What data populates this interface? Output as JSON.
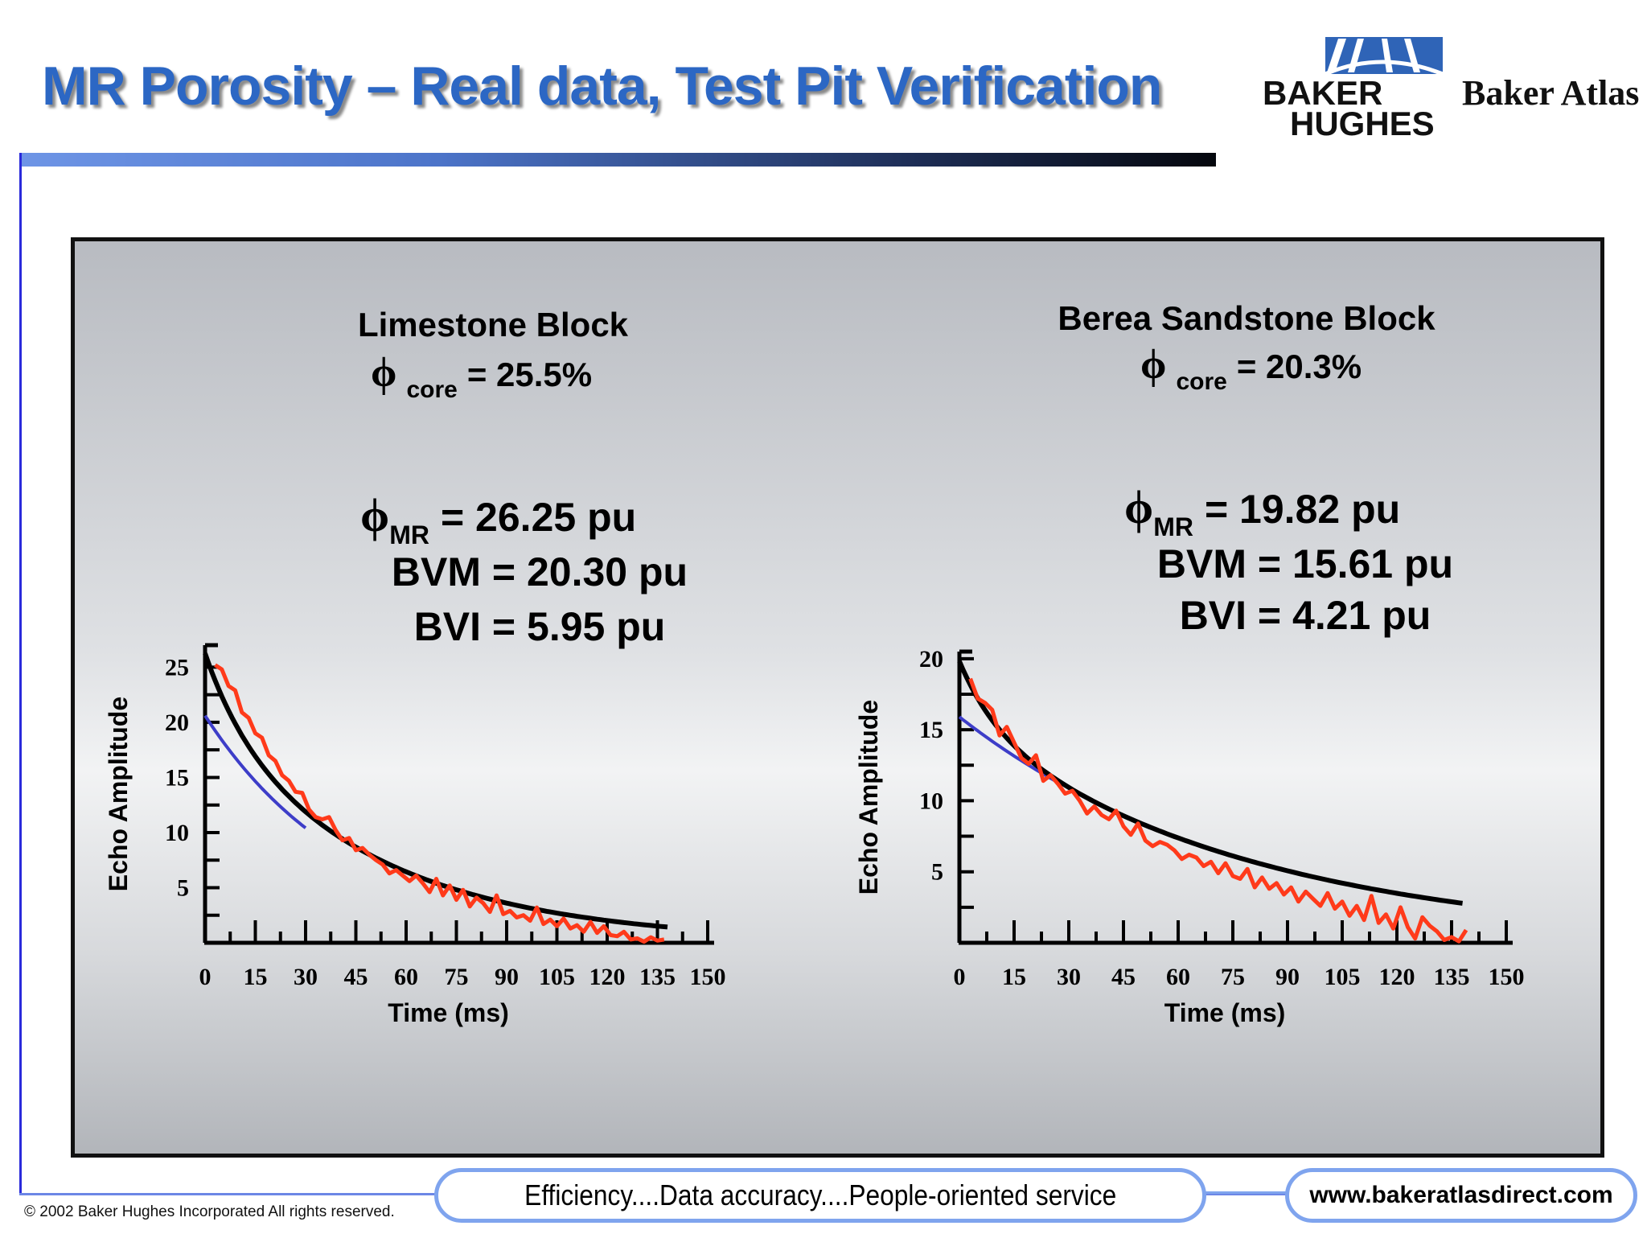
{
  "slide": {
    "title": "MR Porosity – Real data, Test Pit Verification",
    "logo_bh_line1": "BAKER",
    "logo_bh_line2": "HUGHES",
    "logo_ba": "Baker Atlas",
    "copyright": "© 2002 Baker Hughes Incorporated All rights reserved.",
    "slogan": "Efficiency....Data accuracy....People-oriented service",
    "url": "www.bakeratlasdirect.com"
  },
  "colors": {
    "title_blue": "#2c67c4",
    "measured_echo": "#ff3a1a",
    "total_fit": "#000000",
    "bound_fit": "#3d3dc8",
    "frame_border": "#7fa4ee"
  },
  "chart_data": [
    {
      "type": "line",
      "title": "Limestone Block",
      "phi_symbol": "ϕ",
      "core_sub": "core",
      "core_value": "= 25.5%",
      "mr_sub": "MR",
      "mr_value": "= 26.25 pu",
      "bvm_label": "BVM = 20.30 pu",
      "bvi_label": "BVI = 5.95 pu",
      "xlabel": "Time (ms)",
      "ylabel": "Echo Amplitude",
      "xlim": [
        0,
        150
      ],
      "ylim": [
        0,
        27
      ],
      "xticks": [
        0,
        15,
        30,
        45,
        60,
        75,
        90,
        105,
        120,
        135,
        150
      ],
      "xtick_labels": [
        "0",
        "15",
        "30",
        "45",
        "60",
        "75",
        "90",
        "105",
        "120",
        "135",
        "150"
      ],
      "yticks": [
        5,
        10,
        15,
        20,
        25
      ],
      "ytick_labels": [
        "5",
        "10",
        "15",
        "20",
        "25"
      ],
      "fit_total": {
        "a0": 26.25,
        "bvi": 5.95,
        "t2_short": 12,
        "bvm": 20.3,
        "t2_long": 52,
        "x_end": 138
      },
      "fit_bound": {
        "a0": 20.6,
        "t2": 44,
        "x_start": 0,
        "x_end": 30
      },
      "measured": {
        "x": [
          3,
          5,
          7,
          9,
          11,
          13,
          15,
          17,
          19,
          21,
          23,
          25,
          27,
          29,
          31,
          33,
          35,
          37,
          39,
          41,
          43,
          45,
          47,
          49,
          51,
          53,
          55,
          57,
          59,
          61,
          63,
          65,
          67,
          69,
          71,
          73,
          75,
          77,
          79,
          81,
          83,
          85,
          87,
          89,
          91,
          93,
          95,
          97,
          99,
          101,
          103,
          105,
          107,
          109,
          111,
          113,
          115,
          117,
          119,
          121,
          123,
          125,
          127,
          129,
          131,
          133,
          135,
          137
        ],
        "y": [
          25.2,
          24.8,
          23.3,
          22.9,
          20.9,
          20.4,
          19.0,
          18.6,
          17.0,
          16.5,
          15.2,
          14.7,
          13.7,
          13.6,
          12.1,
          11.4,
          11.2,
          11.4,
          10.2,
          9.3,
          9.5,
          8.4,
          8.6,
          8.0,
          7.5,
          7.1,
          6.3,
          6.6,
          6.1,
          5.6,
          6.1,
          5.4,
          4.6,
          5.8,
          4.3,
          5.2,
          3.9,
          4.8,
          3.3,
          4.1,
          3.6,
          2.8,
          4.3,
          2.6,
          2.9,
          2.3,
          2.5,
          2.0,
          3.2,
          1.7,
          2.1,
          1.5,
          2.2,
          1.3,
          1.6,
          1.0,
          1.9,
          0.9,
          1.5,
          0.7,
          0.6,
          1.0,
          0.3,
          0.4,
          0.1,
          0.5,
          0.2,
          0.3
        ]
      }
    },
    {
      "type": "line",
      "title": "Berea Sandstone Block",
      "phi_symbol": "ϕ",
      "core_sub": "core",
      "core_value": "= 20.3%",
      "mr_sub": "MR",
      "mr_value": "= 19.82 pu",
      "bvm_label": "BVM = 15.61 pu",
      "bvi_label": "BVI = 4.21 pu",
      "xlabel": "Time (ms)",
      "ylabel": "Echo Amplitude",
      "xlim": [
        0,
        150
      ],
      "ylim": [
        0,
        20.5
      ],
      "xticks": [
        0,
        15,
        30,
        45,
        60,
        75,
        90,
        105,
        120,
        135,
        150
      ],
      "xtick_labels": [
        "0",
        "15",
        "30",
        "45",
        "60",
        "75",
        "90",
        "105",
        "120",
        "135",
        "150"
      ],
      "yticks": [
        5,
        10,
        15,
        20
      ],
      "ytick_labels": [
        "5",
        "10",
        "15",
        "20"
      ],
      "fit_total": {
        "a0": 19.82,
        "bvi": 4.21,
        "t2_short": 10,
        "bvm": 15.61,
        "t2_long": 80,
        "x_end": 138
      },
      "fit_bound": {
        "a0": 15.9,
        "t2": 79,
        "x_start": 0,
        "x_end": 28
      },
      "measured": {
        "x": [
          3,
          5,
          7,
          9,
          11,
          13,
          15,
          17,
          19,
          21,
          23,
          25,
          27,
          29,
          31,
          33,
          35,
          37,
          39,
          41,
          43,
          45,
          47,
          49,
          51,
          53,
          55,
          57,
          59,
          61,
          63,
          65,
          67,
          69,
          71,
          73,
          75,
          77,
          79,
          81,
          83,
          85,
          87,
          89,
          91,
          93,
          95,
          97,
          99,
          101,
          103,
          105,
          107,
          109,
          111,
          113,
          115,
          117,
          119,
          121,
          123,
          125,
          127,
          129,
          131,
          133,
          135,
          137,
          139
        ],
        "y": [
          18.6,
          17.2,
          16.9,
          16.4,
          14.6,
          15.2,
          14.1,
          13.0,
          12.6,
          13.2,
          11.4,
          11.8,
          11.2,
          10.5,
          10.7,
          10.0,
          9.1,
          9.6,
          9.0,
          8.7,
          9.3,
          8.2,
          7.6,
          8.4,
          7.2,
          6.8,
          7.1,
          6.9,
          6.5,
          5.9,
          6.2,
          6.0,
          5.4,
          5.7,
          4.9,
          5.6,
          4.7,
          4.5,
          5.2,
          3.9,
          4.6,
          3.8,
          4.2,
          3.4,
          3.9,
          2.9,
          3.6,
          3.1,
          2.6,
          3.5,
          2.4,
          2.9,
          1.9,
          2.6,
          1.6,
          3.3,
          1.4,
          2.0,
          1.0,
          2.5,
          1.1,
          0.3,
          1.8,
          1.2,
          0.8,
          0.2,
          0.4,
          0.1,
          0.9
        ]
      }
    }
  ]
}
